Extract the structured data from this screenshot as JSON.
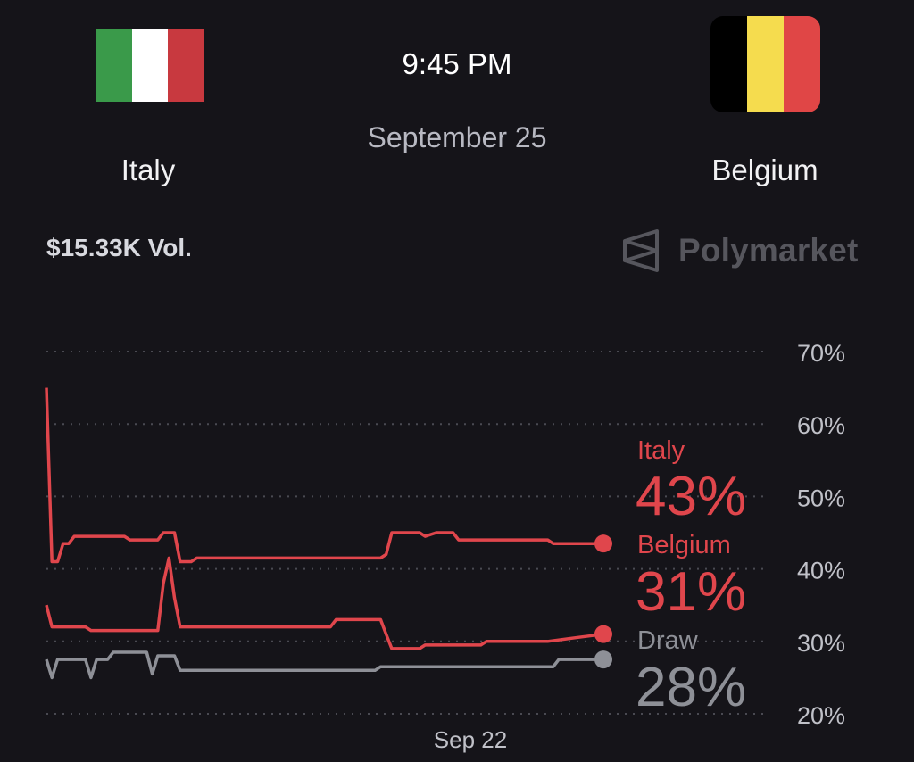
{
  "match": {
    "time": "9:45 PM",
    "date": "September 25",
    "home": {
      "name": "Italy",
      "flag_colors": [
        "#3a9a4a",
        "#ffffff",
        "#c8393f"
      ]
    },
    "away": {
      "name": "Belgium",
      "flag_colors": [
        "#000000",
        "#f5dc4e",
        "#e04646"
      ]
    },
    "volume": "$15.33K Vol.",
    "brand": "Polymarket",
    "brand_icon": "polymarket-logo-icon"
  },
  "chart_data": {
    "type": "line",
    "y_ticks": [
      "70%",
      "60%",
      "50%",
      "40%",
      "30%",
      "20%"
    ],
    "ylim": [
      20,
      70
    ],
    "x_tick_labels": [
      "Sep 22"
    ],
    "grid": true,
    "legend_placement": "right-end",
    "series": [
      {
        "name": "Italy",
        "label": "43%",
        "color": "#e0464c",
        "points": [
          [
            0,
            65
          ],
          [
            1,
            41
          ],
          [
            2,
            41
          ],
          [
            3,
            43.5
          ],
          [
            4,
            43.5
          ],
          [
            5,
            44.5
          ],
          [
            14,
            44.5
          ],
          [
            15,
            44
          ],
          [
            20,
            44
          ],
          [
            21,
            45
          ],
          [
            23,
            45
          ],
          [
            24,
            41
          ],
          [
            26,
            41
          ],
          [
            27,
            41.5
          ],
          [
            60,
            41.5
          ],
          [
            61,
            42
          ],
          [
            62,
            45
          ],
          [
            67,
            45
          ],
          [
            68,
            44.5
          ],
          [
            70,
            45
          ],
          [
            73,
            45
          ],
          [
            74,
            44
          ],
          [
            90,
            44
          ],
          [
            91,
            43.5
          ],
          [
            100,
            43.5
          ]
        ]
      },
      {
        "name": "Belgium",
        "label": "31%",
        "color": "#e0464c",
        "points": [
          [
            0,
            35
          ],
          [
            1,
            32
          ],
          [
            7,
            32
          ],
          [
            8,
            31.5
          ],
          [
            20,
            31.5
          ],
          [
            21,
            38
          ],
          [
            22,
            41.5
          ],
          [
            23,
            36
          ],
          [
            24,
            32
          ],
          [
            51,
            32
          ],
          [
            52,
            33
          ],
          [
            60,
            33
          ],
          [
            61,
            31
          ],
          [
            62,
            29
          ],
          [
            67,
            29
          ],
          [
            68,
            29.5
          ],
          [
            78,
            29.5
          ],
          [
            79,
            30
          ],
          [
            90,
            30
          ],
          [
            95,
            30.5
          ],
          [
            100,
            31
          ]
        ]
      },
      {
        "name": "Draw",
        "label": "28%",
        "color": "#8e9097",
        "points": [
          [
            0,
            27.5
          ],
          [
            1,
            25
          ],
          [
            2,
            27.5
          ],
          [
            7,
            27.5
          ],
          [
            8,
            25
          ],
          [
            9,
            27.5
          ],
          [
            11,
            27.5
          ],
          [
            12,
            28.5
          ],
          [
            18,
            28.5
          ],
          [
            19,
            25.5
          ],
          [
            20,
            28
          ],
          [
            23,
            28
          ],
          [
            24,
            26
          ],
          [
            59,
            26
          ],
          [
            60,
            26.5
          ],
          [
            91,
            26.5
          ],
          [
            92,
            27.5
          ],
          [
            100,
            27.5
          ]
        ]
      }
    ]
  }
}
